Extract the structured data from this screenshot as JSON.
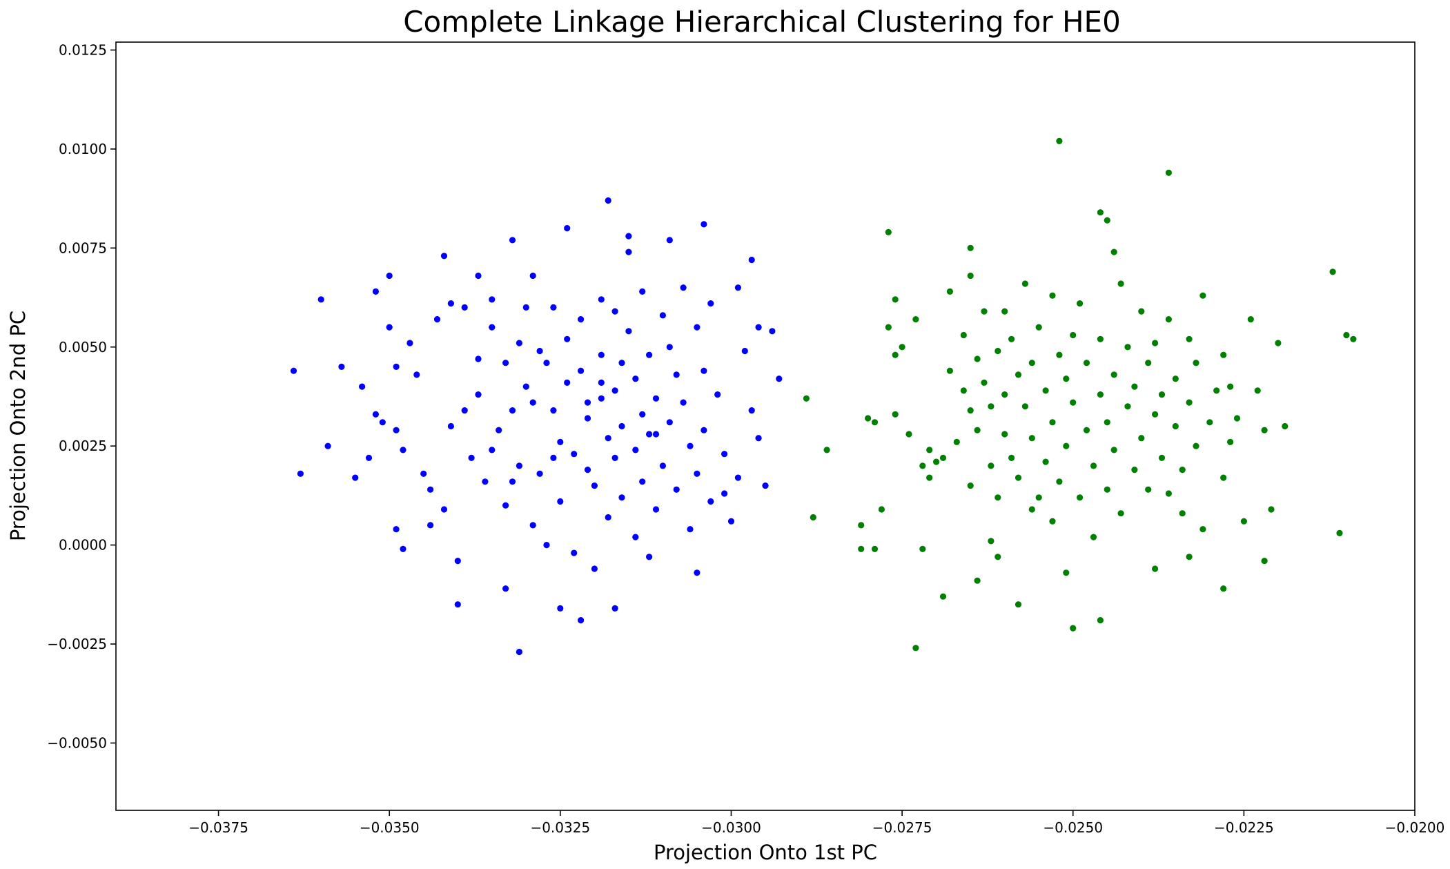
{
  "chart_data": {
    "type": "scatter",
    "title": "Complete Linkage Hierarchical Clustering for HE0",
    "xlabel": "Projection Onto 1st PC",
    "ylabel": "Projection Onto 2nd PC",
    "xlim": [
      -0.039,
      -0.02
    ],
    "ylim": [
      -0.0067,
      0.0127
    ],
    "xticks": [
      -0.0375,
      -0.035,
      -0.0325,
      -0.03,
      -0.0275,
      -0.025,
      -0.0225,
      -0.02
    ],
    "xtick_labels": [
      "−0.0375",
      "−0.0350",
      "−0.0325",
      "−0.0300",
      "−0.0275",
      "−0.0250",
      "−0.0225",
      "−0.0200"
    ],
    "yticks": [
      -0.005,
      -0.0025,
      0.0,
      0.0025,
      0.005,
      0.0075,
      0.01,
      0.0125
    ],
    "ytick_labels": [
      "−0.0050",
      "−0.0025",
      "0.0000",
      "0.0025",
      "0.0050",
      "0.0075",
      "0.0100",
      "0.0125"
    ],
    "grid": false,
    "series": [
      {
        "color": "#0000ff",
        "points": [
          [
            -0.0364,
            0.0044
          ],
          [
            -0.0363,
            0.0018
          ],
          [
            -0.036,
            0.0062
          ],
          [
            -0.0359,
            0.0025
          ],
          [
            -0.0357,
            0.0045
          ],
          [
            -0.0355,
            0.0017
          ],
          [
            -0.0354,
            0.004
          ],
          [
            -0.0353,
            0.0022
          ],
          [
            -0.0352,
            0.0064
          ],
          [
            -0.0352,
            0.0033
          ],
          [
            -0.0351,
            0.0031
          ],
          [
            -0.035,
            0.0068
          ],
          [
            -0.035,
            0.0055
          ],
          [
            -0.0349,
            0.0045
          ],
          [
            -0.0349,
            0.0029
          ],
          [
            -0.0349,
            0.0004
          ],
          [
            -0.0348,
            0.0024
          ],
          [
            -0.0348,
            -0.0001
          ],
          [
            -0.0347,
            0.0051
          ],
          [
            -0.0346,
            0.0043
          ],
          [
            -0.0345,
            0.0018
          ],
          [
            -0.0344,
            0.0014
          ],
          [
            -0.0344,
            0.0005
          ],
          [
            -0.0343,
            0.0057
          ],
          [
            -0.0342,
            0.0073
          ],
          [
            -0.0342,
            0.0009
          ],
          [
            -0.0341,
            0.003
          ],
          [
            -0.034,
            -0.0004
          ],
          [
            -0.034,
            -0.0015
          ],
          [
            -0.0339,
            0.006
          ],
          [
            -0.0339,
            0.0034
          ],
          [
            -0.0338,
            0.0022
          ],
          [
            -0.0337,
            0.0047
          ],
          [
            -0.0337,
            0.0038
          ],
          [
            -0.0336,
            0.0016
          ],
          [
            -0.0335,
            0.0062
          ],
          [
            -0.0335,
            0.0055
          ],
          [
            -0.0335,
            0.0024
          ],
          [
            -0.0334,
            0.0029
          ],
          [
            -0.0333,
            0.0046
          ],
          [
            -0.0333,
            0.001
          ],
          [
            -0.0332,
            0.0034
          ],
          [
            -0.0332,
            0.0016
          ],
          [
            -0.0331,
            0.0051
          ],
          [
            -0.0331,
            0.002
          ],
          [
            -0.033,
            0.006
          ],
          [
            -0.033,
            0.004
          ],
          [
            -0.0329,
            0.0068
          ],
          [
            -0.0329,
            0.0036
          ],
          [
            -0.0329,
            0.0005
          ],
          [
            -0.0328,
            0.0049
          ],
          [
            -0.0328,
            0.0018
          ],
          [
            -0.0327,
            0.0
          ],
          [
            -0.0326,
            0.006
          ],
          [
            -0.0326,
            0.0034
          ],
          [
            -0.0325,
            0.0026
          ],
          [
            -0.0325,
            0.0011
          ],
          [
            -0.0324,
            0.0052
          ],
          [
            -0.0324,
            0.0041
          ],
          [
            -0.0323,
            0.0023
          ],
          [
            -0.0323,
            -0.0002
          ],
          [
            -0.0322,
            0.0057
          ],
          [
            -0.0322,
            0.0044
          ],
          [
            -0.0321,
            0.0032
          ],
          [
            -0.0321,
            0.0019
          ],
          [
            -0.032,
            0.0015
          ],
          [
            -0.032,
            -0.0006
          ],
          [
            -0.0319,
            0.0062
          ],
          [
            -0.0319,
            0.0048
          ],
          [
            -0.0319,
            0.0037
          ],
          [
            -0.0318,
            0.0027
          ],
          [
            -0.0318,
            0.0007
          ],
          [
            -0.0317,
            0.0059
          ],
          [
            -0.0317,
            0.0039
          ],
          [
            -0.0317,
            0.0022
          ],
          [
            -0.0316,
            0.0046
          ],
          [
            -0.0316,
            0.003
          ],
          [
            -0.0316,
            0.0012
          ],
          [
            -0.0315,
            0.0078
          ],
          [
            -0.0315,
            0.0054
          ],
          [
            -0.0314,
            0.0042
          ],
          [
            -0.0314,
            0.0024
          ],
          [
            -0.0314,
            0.0002
          ],
          [
            -0.0313,
            0.0064
          ],
          [
            -0.0313,
            0.0033
          ],
          [
            -0.0313,
            0.0016
          ],
          [
            -0.0312,
            0.0048
          ],
          [
            -0.0312,
            0.0028
          ],
          [
            -0.0311,
            0.0037
          ],
          [
            -0.0311,
            0.0009
          ],
          [
            -0.031,
            0.0058
          ],
          [
            -0.031,
            0.002
          ],
          [
            -0.0309,
            0.005
          ],
          [
            -0.0309,
            0.0031
          ],
          [
            -0.0308,
            0.0043
          ],
          [
            -0.0308,
            0.0014
          ],
          [
            -0.0307,
            0.0065
          ],
          [
            -0.0307,
            0.0036
          ],
          [
            -0.0306,
            0.0025
          ],
          [
            -0.0306,
            0.0004
          ],
          [
            -0.0305,
            0.0055
          ],
          [
            -0.0305,
            0.0018
          ],
          [
            -0.0304,
            0.0044
          ],
          [
            -0.0304,
            0.0029
          ],
          [
            -0.0303,
            0.0061
          ],
          [
            -0.0303,
            0.0011
          ],
          [
            -0.0302,
            0.0038
          ],
          [
            -0.0301,
            0.0023
          ],
          [
            -0.03,
            0.0006
          ],
          [
            -0.0299,
            0.0065
          ],
          [
            -0.0299,
            0.0017
          ],
          [
            -0.0298,
            0.0049
          ],
          [
            -0.0297,
            0.0072
          ],
          [
            -0.0297,
            0.0034
          ],
          [
            -0.0296,
            0.0027
          ],
          [
            -0.0296,
            0.0055
          ],
          [
            -0.0295,
            0.0015
          ],
          [
            -0.0294,
            0.0054
          ],
          [
            -0.0293,
            0.0042
          ],
          [
            -0.0331,
            -0.0027
          ],
          [
            -0.0325,
            -0.0016
          ],
          [
            -0.0322,
            -0.0019
          ],
          [
            -0.0317,
            -0.0016
          ],
          [
            -0.0332,
            0.0077
          ],
          [
            -0.0324,
            0.008
          ],
          [
            -0.0318,
            0.0087
          ],
          [
            -0.0304,
            0.0081
          ],
          [
            -0.0315,
            0.0074
          ],
          [
            -0.0309,
            0.0077
          ],
          [
            -0.0337,
            0.0068
          ],
          [
            -0.0341,
            0.0061
          ],
          [
            -0.0301,
            0.0013
          ],
          [
            -0.0305,
            -0.0007
          ],
          [
            -0.0312,
            -0.0003
          ],
          [
            -0.0333,
            -0.0011
          ],
          [
            -0.0326,
            0.0022
          ],
          [
            -0.0321,
            0.0036
          ],
          [
            -0.0327,
            0.0046
          ],
          [
            -0.0319,
            0.0041
          ],
          [
            -0.0311,
            0.0028
          ]
        ]
      },
      {
        "color": "#008000",
        "points": [
          [
            -0.0289,
            0.0037
          ],
          [
            -0.0288,
            0.0007
          ],
          [
            -0.0286,
            0.0024
          ],
          [
            -0.0281,
            0.0005
          ],
          [
            -0.0281,
            -0.0001
          ],
          [
            -0.028,
            0.0032
          ],
          [
            -0.0279,
            0.0031
          ],
          [
            -0.0279,
            -0.0001
          ],
          [
            -0.0278,
            0.0009
          ],
          [
            -0.0277,
            0.0055
          ],
          [
            -0.0277,
            0.0079
          ],
          [
            -0.0276,
            0.0062
          ],
          [
            -0.0276,
            0.0033
          ],
          [
            -0.0276,
            0.0048
          ],
          [
            -0.0275,
            0.005
          ],
          [
            -0.0274,
            0.0028
          ],
          [
            -0.0273,
            0.0057
          ],
          [
            -0.0272,
            0.002
          ],
          [
            -0.0272,
            -0.0001
          ],
          [
            -0.0271,
            0.0024
          ],
          [
            -0.0271,
            0.0017
          ],
          [
            -0.027,
            0.0021
          ],
          [
            -0.0269,
            0.0022
          ],
          [
            -0.0268,
            0.0044
          ],
          [
            -0.0268,
            0.0064
          ],
          [
            -0.0267,
            0.0026
          ],
          [
            -0.0266,
            0.0053
          ],
          [
            -0.0266,
            0.0039
          ],
          [
            -0.0265,
            0.0075
          ],
          [
            -0.0265,
            0.0068
          ],
          [
            -0.0265,
            0.0034
          ],
          [
            -0.0265,
            0.0015
          ],
          [
            -0.0264,
            0.0047
          ],
          [
            -0.0264,
            0.0029
          ],
          [
            -0.0263,
            0.0041
          ],
          [
            -0.0263,
            0.0059
          ],
          [
            -0.0262,
            0.0035
          ],
          [
            -0.0262,
            0.002
          ],
          [
            -0.0261,
            0.0049
          ],
          [
            -0.0261,
            0.0012
          ],
          [
            -0.026,
            0.0059
          ],
          [
            -0.026,
            0.0038
          ],
          [
            -0.026,
            0.0028
          ],
          [
            -0.0259,
            0.0052
          ],
          [
            -0.0259,
            0.0022
          ],
          [
            -0.0258,
            0.0043
          ],
          [
            -0.0258,
            0.0017
          ],
          [
            -0.0257,
            0.0066
          ],
          [
            -0.0257,
            0.0035
          ],
          [
            -0.0256,
            0.0046
          ],
          [
            -0.0256,
            0.0027
          ],
          [
            -0.0255,
            0.0055
          ],
          [
            -0.0255,
            0.0012
          ],
          [
            -0.0254,
            0.0039
          ],
          [
            -0.0254,
            0.0021
          ],
          [
            -0.0253,
            0.0063
          ],
          [
            -0.0253,
            0.0031
          ],
          [
            -0.0252,
            0.0048
          ],
          [
            -0.0252,
            0.0016
          ],
          [
            -0.0251,
            0.0042
          ],
          [
            -0.0251,
            0.0025
          ],
          [
            -0.025,
            0.0053
          ],
          [
            -0.025,
            0.0036
          ],
          [
            -0.0249,
            0.0012
          ],
          [
            -0.0249,
            0.0061
          ],
          [
            -0.0248,
            0.0029
          ],
          [
            -0.0248,
            0.0046
          ],
          [
            -0.0247,
            0.002
          ],
          [
            -0.0246,
            0.0038
          ],
          [
            -0.0246,
            0.0052
          ],
          [
            -0.0245,
            0.0014
          ],
          [
            -0.0245,
            0.0031
          ],
          [
            -0.0244,
            0.0043
          ],
          [
            -0.0244,
            0.0024
          ],
          [
            -0.0243,
            0.0066
          ],
          [
            -0.0243,
            0.0008
          ],
          [
            -0.0242,
            0.0035
          ],
          [
            -0.0242,
            0.005
          ],
          [
            -0.0241,
            0.0019
          ],
          [
            -0.0241,
            0.004
          ],
          [
            -0.024,
            0.0027
          ],
          [
            -0.024,
            0.0059
          ],
          [
            -0.0239,
            0.0014
          ],
          [
            -0.0239,
            0.0046
          ],
          [
            -0.0238,
            0.0033
          ],
          [
            -0.0238,
            0.0051
          ],
          [
            -0.0237,
            0.0022
          ],
          [
            -0.0237,
            0.0038
          ],
          [
            -0.0236,
            0.0013
          ],
          [
            -0.0236,
            0.0057
          ],
          [
            -0.0235,
            0.003
          ],
          [
            -0.0235,
            0.0042
          ],
          [
            -0.0234,
            0.0008
          ],
          [
            -0.0234,
            0.0019
          ],
          [
            -0.0233,
            0.0052
          ],
          [
            -0.0233,
            0.0036
          ],
          [
            -0.0232,
            0.0025
          ],
          [
            -0.0232,
            0.0046
          ],
          [
            -0.0231,
            0.0004
          ],
          [
            -0.0231,
            0.0063
          ],
          [
            -0.023,
            0.0031
          ],
          [
            -0.0229,
            0.0039
          ],
          [
            -0.0228,
            0.0048
          ],
          [
            -0.0228,
            0.0017
          ],
          [
            -0.0227,
            0.004
          ],
          [
            -0.0227,
            0.0026
          ],
          [
            -0.0226,
            0.0032
          ],
          [
            -0.0225,
            0.0006
          ],
          [
            -0.0224,
            0.0057
          ],
          [
            -0.0223,
            0.0039
          ],
          [
            -0.0222,
            0.0029
          ],
          [
            -0.0221,
            0.0009
          ],
          [
            -0.022,
            0.0051
          ],
          [
            -0.0219,
            0.003
          ],
          [
            -0.0212,
            0.0069
          ],
          [
            -0.021,
            0.0053
          ],
          [
            -0.0209,
            0.0052
          ],
          [
            -0.0211,
            0.0003
          ],
          [
            -0.0222,
            -0.0004
          ],
          [
            -0.0228,
            -0.0011
          ],
          [
            -0.0252,
            0.0102
          ],
          [
            -0.0236,
            0.0094
          ],
          [
            -0.0246,
            0.0084
          ],
          [
            -0.0245,
            0.0082
          ],
          [
            -0.0244,
            0.0074
          ],
          [
            -0.0273,
            -0.0026
          ],
          [
            -0.0269,
            -0.0013
          ],
          [
            -0.0258,
            -0.0015
          ],
          [
            -0.025,
            -0.0021
          ],
          [
            -0.0246,
            -0.0019
          ],
          [
            -0.0251,
            -0.0007
          ],
          [
            -0.0256,
            0.0009
          ],
          [
            -0.0261,
            -0.0003
          ],
          [
            -0.0264,
            -0.0009
          ],
          [
            -0.0238,
            -0.0006
          ],
          [
            -0.0233,
            -0.0003
          ],
          [
            -0.0247,
            0.0002
          ],
          [
            -0.0253,
            0.0006
          ],
          [
            -0.0262,
            0.0001
          ]
        ]
      }
    ]
  }
}
